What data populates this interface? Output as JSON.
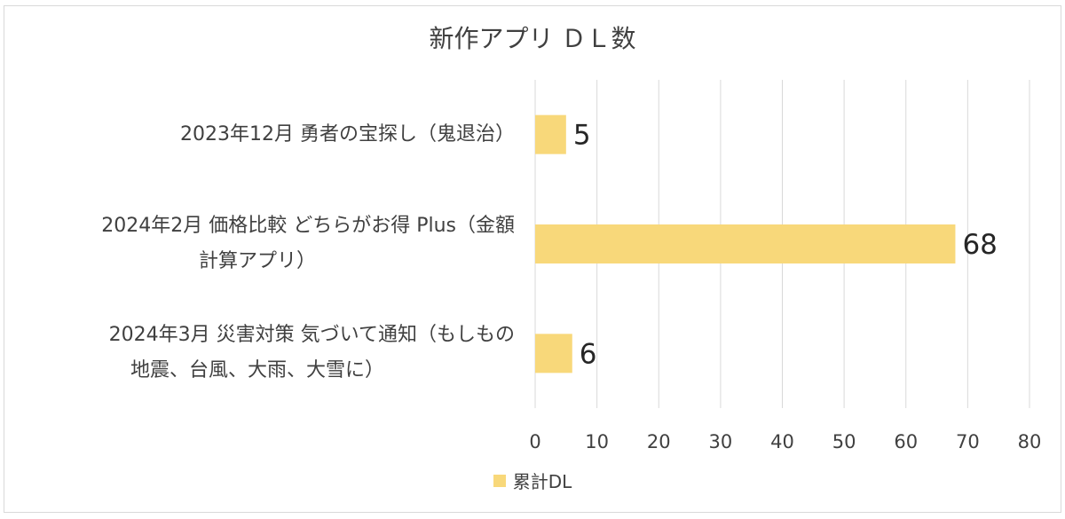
{
  "chart_data": {
    "type": "bar",
    "orientation": "horizontal",
    "title": "新作アプリ ＤＬ数",
    "categories": [
      [
        "2023年12月 勇者の宝探し（鬼退治）"
      ],
      [
        "2024年2月 価格比較 どちらがお得 Plus（金額",
        "計算アプリ）"
      ],
      [
        "2024年3月 災害対策 気づいて通知（もしもの",
        "地震、台風、大雨、大雪に）"
      ]
    ],
    "series": [
      {
        "name": "累計DL",
        "values": [
          5,
          68,
          6
        ],
        "color": "#f8d87a"
      }
    ],
    "xlim": [
      0,
      80
    ],
    "xticks": [
      0,
      10,
      20,
      30,
      40,
      50,
      60,
      70,
      80
    ],
    "grid": true,
    "legend_position": "bottom"
  }
}
